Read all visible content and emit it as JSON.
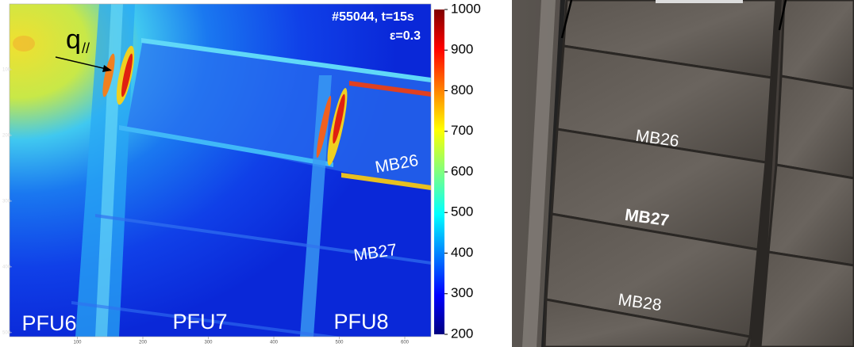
{
  "ir_image": {
    "title": "#55044, t=15s",
    "emissivity": "ε=0.3",
    "heat_flux": {
      "symbol": "q",
      "subscript": "//"
    },
    "tile_labels": [
      "MB26",
      "MB27"
    ],
    "pfu_labels": [
      "PFU6",
      "PFU7",
      "PFU8"
    ],
    "xlim": [
      0,
      640
    ],
    "xticks": [
      100,
      200,
      300,
      400,
      500,
      600
    ],
    "ylim": [
      0,
      505
    ],
    "yticks": [
      100,
      200,
      300,
      400,
      500
    ],
    "colorbar": {
      "lim": [
        200,
        1000
      ],
      "ticks": [
        200,
        300,
        400,
        500,
        600,
        700,
        800,
        900,
        1000
      ]
    }
  },
  "photo": {
    "labels": [
      "MB26",
      "MB27",
      "MB28"
    ]
  }
}
